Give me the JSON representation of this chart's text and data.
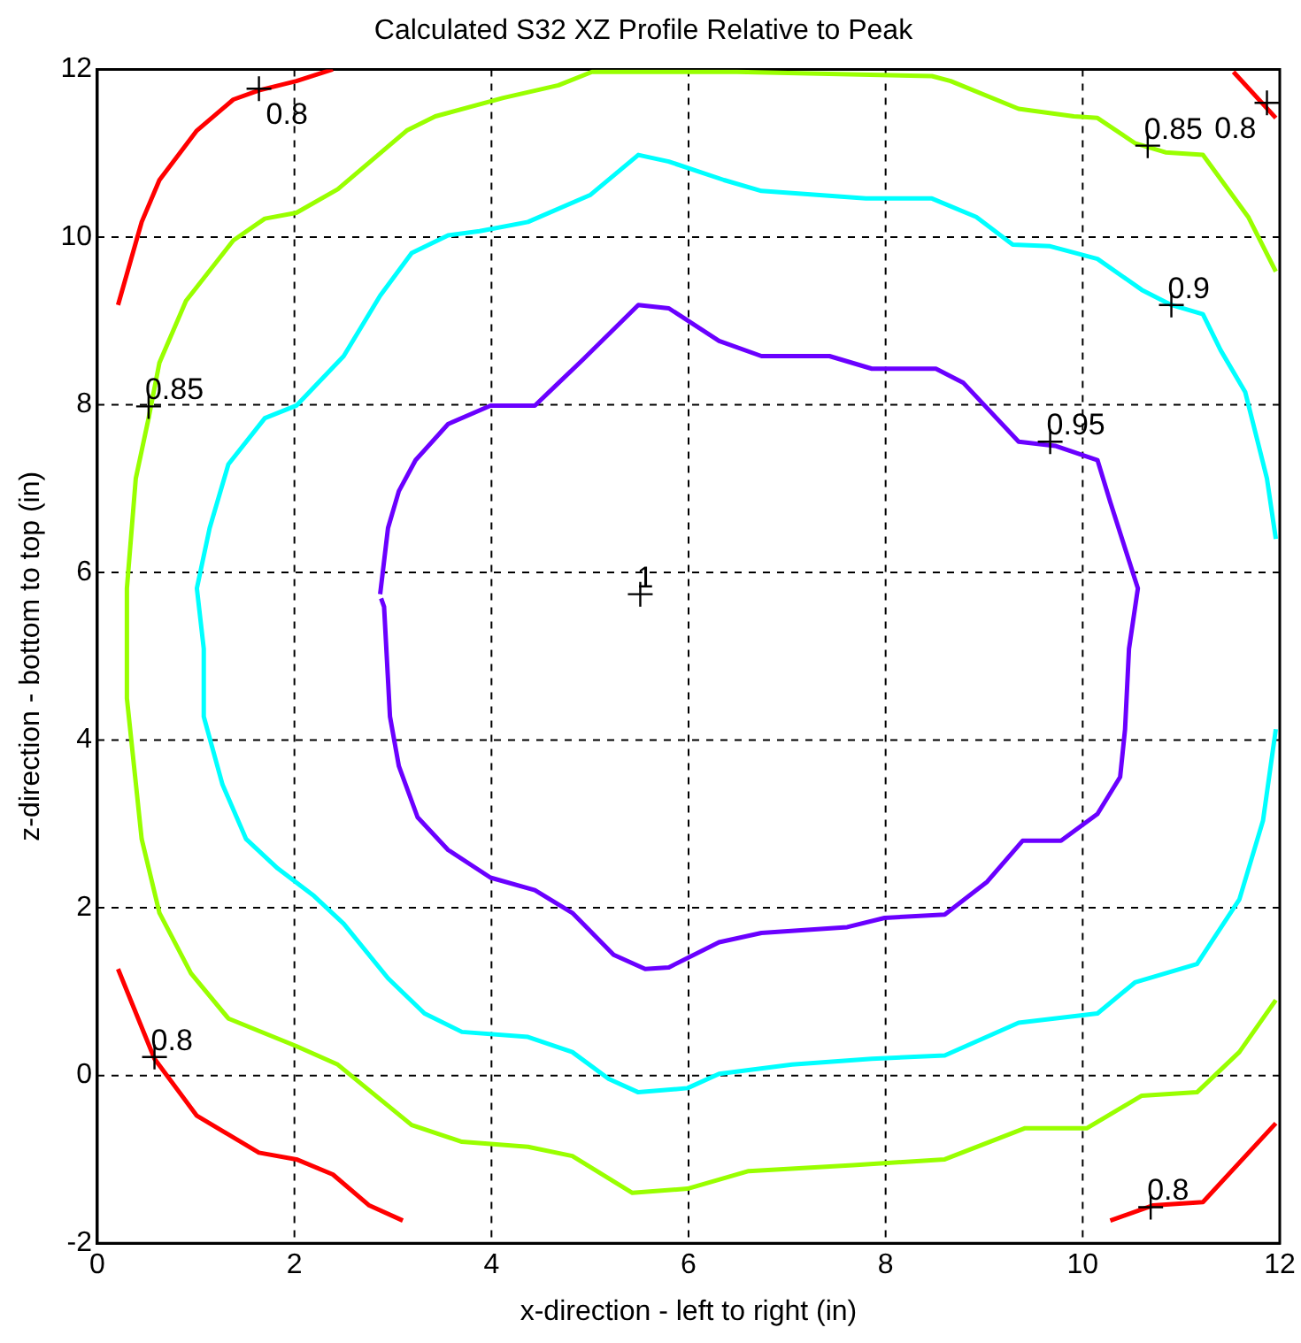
{
  "chart_data": {
    "type": "line",
    "title": "Calculated S32 XZ Profile Relative to Peak",
    "xlabel": "x-direction - left to right (in)",
    "ylabel": "z-direction - bottom to top (in)",
    "xlim": [
      0,
      12
    ],
    "xticks": [
      0,
      2,
      4,
      6,
      8,
      10,
      12
    ],
    "ylim": [
      -2,
      12
    ],
    "yticks": [
      -2,
      0,
      2,
      4,
      6,
      8,
      10,
      12
    ],
    "grid": true,
    "legend": false,
    "marker": "none",
    "series": [
      {
        "color": "#ff0000",
        "x": [
          0.21,
          0.45,
          0.63,
          1.01,
          1.38,
          1.64,
          2.02,
          2.39
        ],
        "values": [
          9.19,
          10.18,
          10.68,
          11.27,
          11.64,
          11.75,
          11.86,
          12.0
        ]
      },
      {
        "color": "#ff0000",
        "x": [
          11.53,
          11.96
        ],
        "values": [
          11.97,
          11.42
        ]
      },
      {
        "color": "#ff0000",
        "x": [
          0.21,
          0.58,
          1.01,
          1.64,
          2.02,
          2.39,
          2.76,
          3.1
        ],
        "values": [
          1.27,
          0.2,
          -0.48,
          -0.92,
          -1.0,
          -1.18,
          -1.55,
          -1.73
        ]
      },
      {
        "color": "#ff0000",
        "x": [
          10.28,
          10.71,
          11.22,
          11.96
        ],
        "values": [
          -1.73,
          -1.55,
          -1.51,
          -0.57
        ]
      },
      {
        "color": "#99ff00",
        "x": [
          11.96,
          11.68,
          11.22,
          10.84,
          10.53,
          10.15,
          9.91,
          9.35,
          8.66,
          8.47,
          6.49,
          5.02,
          4.68,
          4.12,
          3.43,
          3.14,
          2.44,
          2.02,
          1.7,
          1.38,
          0.9,
          0.63,
          0.52,
          0.39,
          0.3,
          0.3,
          0.45,
          0.63,
          0.95,
          1.33,
          2.02,
          2.44,
          3.19,
          3.7,
          4.37,
          4.82,
          5.43,
          5.99,
          6.61,
          7.67,
          8.6,
          9.41,
          10.04,
          10.6,
          11.16,
          11.59,
          11.96
        ],
        "values": [
          9.59,
          10.24,
          10.98,
          11.01,
          11.12,
          11.42,
          11.44,
          11.53,
          11.86,
          11.92,
          11.97,
          11.97,
          11.81,
          11.66,
          11.44,
          11.27,
          10.57,
          10.29,
          10.22,
          9.96,
          9.24,
          8.5,
          7.84,
          7.12,
          5.81,
          4.5,
          2.82,
          1.94,
          1.22,
          0.68,
          0.35,
          0.13,
          -0.59,
          -0.79,
          -0.85,
          -0.96,
          -1.4,
          -1.35,
          -1.14,
          -1.07,
          -1.0,
          -0.63,
          -0.63,
          -0.24,
          -0.2,
          0.28,
          0.9
        ]
      },
      {
        "color": "#00ffff",
        "x": [
          11.96,
          11.87,
          11.65,
          11.4,
          11.22,
          10.9,
          10.6,
          10.15,
          9.67,
          9.29,
          8.92,
          8.47,
          7.8,
          6.74,
          6.36,
          5.8,
          5.49,
          5.0,
          4.37,
          3.88,
          3.56,
          3.19,
          2.87,
          2.5,
          2.02,
          1.7,
          1.33,
          1.14,
          1.01,
          1.08,
          1.08,
          1.27,
          1.51,
          1.83,
          2.2,
          2.5,
          2.95,
          3.32,
          3.7,
          4.37,
          4.82,
          5.19,
          5.49,
          5.99,
          6.31,
          7.05,
          7.86,
          8.6,
          9.35,
          10.15,
          10.53,
          11.16,
          11.59,
          11.83,
          11.96
        ],
        "values": [
          6.4,
          7.12,
          8.15,
          8.65,
          9.08,
          9.19,
          9.37,
          9.74,
          9.89,
          9.91,
          10.24,
          10.46,
          10.46,
          10.55,
          10.68,
          10.9,
          10.98,
          10.5,
          10.18,
          10.07,
          10.02,
          9.81,
          9.3,
          8.58,
          7.99,
          7.84,
          7.29,
          6.53,
          5.81,
          5.09,
          4.28,
          3.47,
          2.82,
          2.47,
          2.14,
          1.81,
          1.16,
          0.74,
          0.52,
          0.46,
          0.28,
          -0.04,
          -0.2,
          -0.15,
          0.02,
          0.13,
          0.2,
          0.24,
          0.63,
          0.74,
          1.11,
          1.33,
          2.1,
          3.04,
          4.13
        ]
      },
      {
        "color": "#6a00ff",
        "x": [
          2.87,
          2.95,
          3.06,
          3.23,
          3.56,
          3.99,
          4.44,
          4.68,
          4.93,
          5.49,
          5.8,
          6.31,
          6.74,
          7.43,
          7.86,
          8.51,
          8.79,
          9.35,
          9.72,
          10.15,
          10.28,
          10.56,
          10.47,
          10.43,
          10.38,
          10.15,
          9.78,
          9.39,
          9.03,
          8.6,
          7.99,
          7.61,
          6.74,
          6.31,
          5.8,
          5.56,
          5.24,
          4.82,
          4.44,
          3.99,
          3.56,
          3.25,
          3.06,
          2.97,
          2.91,
          2.88
        ],
        "values": [
          5.74,
          6.53,
          6.97,
          7.34,
          7.77,
          7.99,
          7.99,
          8.26,
          8.54,
          9.19,
          9.15,
          8.76,
          8.58,
          8.58,
          8.43,
          8.43,
          8.26,
          7.56,
          7.51,
          7.34,
          6.84,
          5.81,
          5.09,
          4.13,
          3.56,
          3.12,
          2.8,
          2.8,
          2.31,
          1.92,
          1.88,
          1.77,
          1.7,
          1.59,
          1.29,
          1.27,
          1.44,
          1.94,
          2.21,
          2.36,
          2.69,
          3.08,
          3.69,
          4.28,
          5.59,
          5.69
        ]
      },
      {
        "type": "scatter",
        "name": "1",
        "color": "#000000",
        "marker": "cross",
        "x": [
          5.51
        ],
        "values": [
          5.74
        ]
      }
    ],
    "annotations": [
      {
        "text": "0.8",
        "x": 1.64,
        "y": 11.77
      },
      {
        "text": "0.85",
        "x": 0.52,
        "y": 7.98
      },
      {
        "text": "0.95",
        "x": 9.67,
        "y": 7.56
      },
      {
        "text": "0.9",
        "x": 10.9,
        "y": 9.19
      },
      {
        "text": "0.85",
        "x": 10.66,
        "y": 11.09
      },
      {
        "text": "0.8",
        "x": 11.87,
        "y": 11.6
      },
      {
        "text": "0.8",
        "x": 0.58,
        "y": 0.22
      },
      {
        "text": "0.8",
        "x": 10.69,
        "y": -1.57
      }
    ]
  }
}
